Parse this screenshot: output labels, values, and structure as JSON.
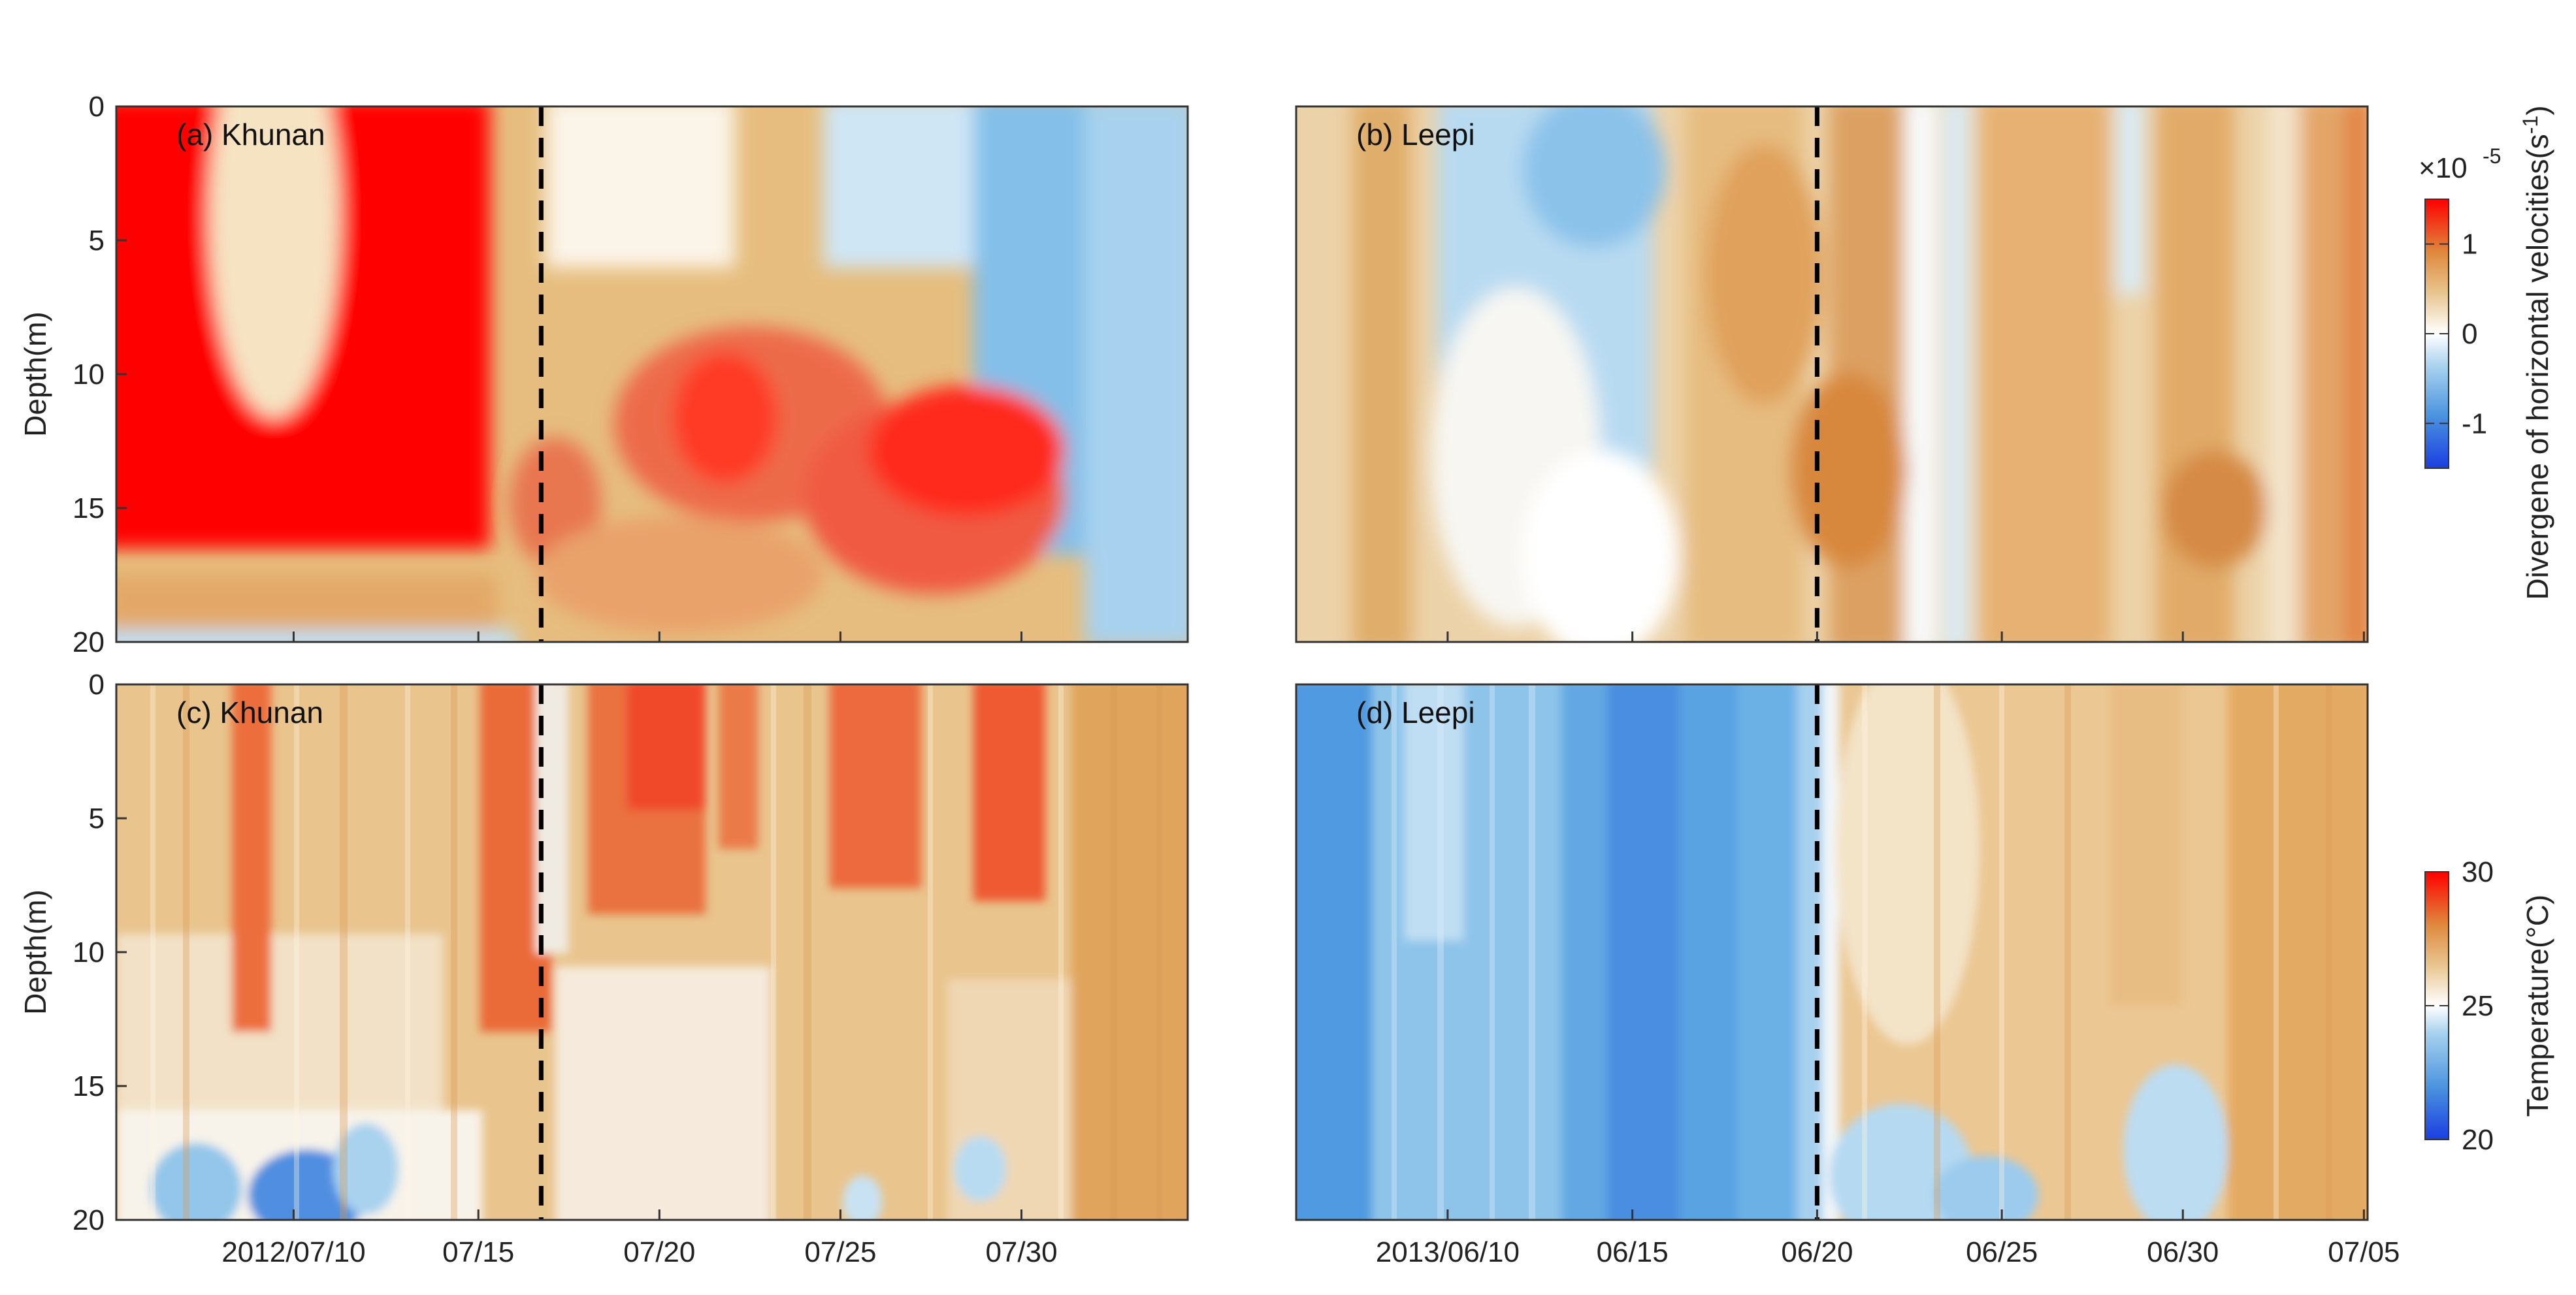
{
  "chart_data": [
    {
      "id": "a",
      "type": "heatmap",
      "panel_label": "(a) Khunan",
      "variable": "Divergene of horizontal velocities(s-1)",
      "ylabel": "Depth(m)",
      "ylim": [
        0,
        20
      ],
      "yticks": [
        0,
        5,
        10,
        15,
        20
      ],
      "xlim_days": [
        0,
        29
      ],
      "xticks": [],
      "event_day": 11.5,
      "clim": [
        -1.5,
        1.5
      ]
    },
    {
      "id": "b",
      "type": "heatmap",
      "panel_label": "(b) Leepi",
      "variable": "Divergene of horizontal velocities(s-1)",
      "ylabel": "",
      "ylim": [
        0,
        20
      ],
      "yticks": [],
      "xlim_days": [
        0,
        29
      ],
      "xticks": [],
      "event_day": 14.1,
      "clim": [
        -1.5,
        1.5
      ]
    },
    {
      "id": "c",
      "type": "heatmap",
      "panel_label": "(c) Khunan",
      "variable": "Temperature(°C)",
      "ylabel": "Depth(m)",
      "ylim": [
        0,
        20
      ],
      "yticks": [
        0,
        5,
        10,
        15,
        20
      ],
      "xlim_days": [
        0,
        29
      ],
      "xticks": [
        {
          "day": 4.8,
          "label": "2012/07/10"
        },
        {
          "day": 9.8,
          "label": "07/15"
        },
        {
          "day": 14.7,
          "label": "07/20"
        },
        {
          "day": 19.6,
          "label": "07/25"
        },
        {
          "day": 24.5,
          "label": "07/30"
        }
      ],
      "event_day": 11.5,
      "clim": [
        20,
        30
      ]
    },
    {
      "id": "d",
      "type": "heatmap",
      "panel_label": "(d) Leepi",
      "variable": "Temperature(°C)",
      "ylabel": "",
      "ylim": [
        0,
        20
      ],
      "yticks": [],
      "xlim_days": [
        0,
        29
      ],
      "xticks": [
        {
          "day": 4.1,
          "label": "2013/06/10"
        },
        {
          "day": 9.1,
          "label": "06/15"
        },
        {
          "day": 14.1,
          "label": "06/20"
        },
        {
          "day": 19.1,
          "label": "06/25"
        },
        {
          "day": 24.0,
          "label": "06/30"
        },
        {
          "day": 28.9,
          "label": "07/05"
        }
      ],
      "event_day": 14.1,
      "clim": [
        20,
        30
      ]
    }
  ],
  "colorbars": {
    "divergence": {
      "multiplier": "×10",
      "exponent": "-5",
      "ticks": [
        "1",
        "0",
        "-1"
      ],
      "label": "Divergene of horizontal velocities(s",
      "label_exp": "-1",
      "label_end": ")",
      "range": [
        -1.5,
        1.5
      ]
    },
    "temperature": {
      "ticks": [
        "30",
        "25",
        "20"
      ],
      "label": "Temperature(°C)",
      "range": [
        20,
        30
      ]
    }
  },
  "colors": {
    "negative": "#1a3ee0",
    "neutral": "#ffffff",
    "positive": "#ff0000",
    "mid_warm": "#e2a95c",
    "event_line": "#000000"
  }
}
